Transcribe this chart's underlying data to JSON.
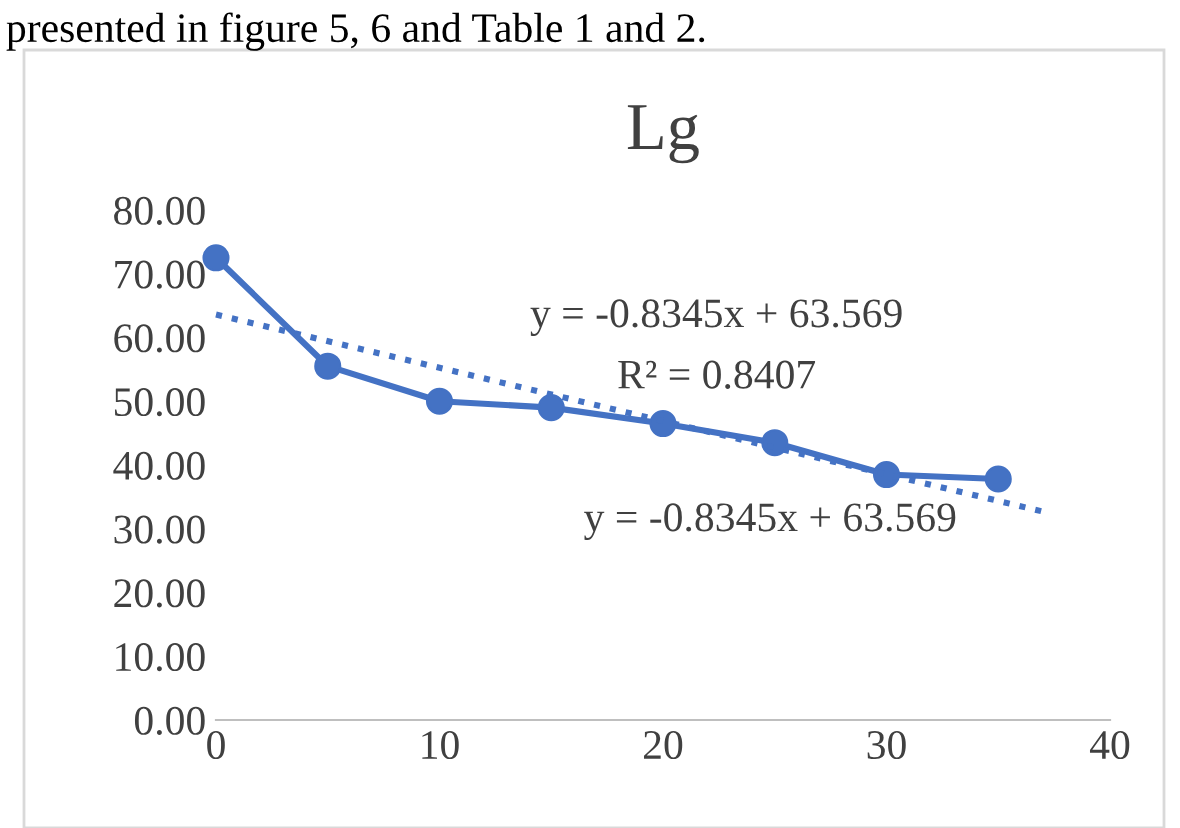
{
  "chart_data": {
    "type": "line",
    "title": "Lg",
    "x": [
      0,
      5,
      10,
      15,
      20,
      25,
      30,
      35
    ],
    "series": [
      {
        "color": "#4472c4",
        "values": [
          72.5,
          55.5,
          50.0,
          49.0,
          46.5,
          43.5,
          38.5,
          37.8
        ],
        "marker": "circle",
        "line_style": "solid"
      },
      {
        "type": "line",
        "x": [
          0,
          37
        ],
        "color": "#4472c4",
        "values": [
          63.6,
          32.7
        ],
        "marker": "none",
        "line_style": "dotted"
      }
    ],
    "xlim": [
      0,
      40
    ],
    "ylim": [
      0,
      80
    ],
    "xticks": [
      0,
      10,
      20,
      30,
      40
    ],
    "yticks": [
      {
        "value": 0,
        "label": "0.00"
      },
      {
        "value": 10,
        "label": "10.00"
      },
      {
        "value": 20,
        "label": "20.00"
      },
      {
        "value": 30,
        "label": "30.00"
      },
      {
        "value": 40,
        "label": "40.00"
      },
      {
        "value": 50,
        "label": "50.00"
      },
      {
        "value": 60,
        "label": "60.00"
      },
      {
        "value": 70,
        "label": "70.00"
      },
      {
        "value": 80,
        "label": "80.00"
      }
    ],
    "grid": false,
    "legend": false,
    "annotations": [
      "y = -0.8345x + 63.569",
      "R² = 0.8407",
      "y = -0.8345x + 63.569",
      "presented in figure 5, 6 and Table 1 and 2."
    ]
  }
}
